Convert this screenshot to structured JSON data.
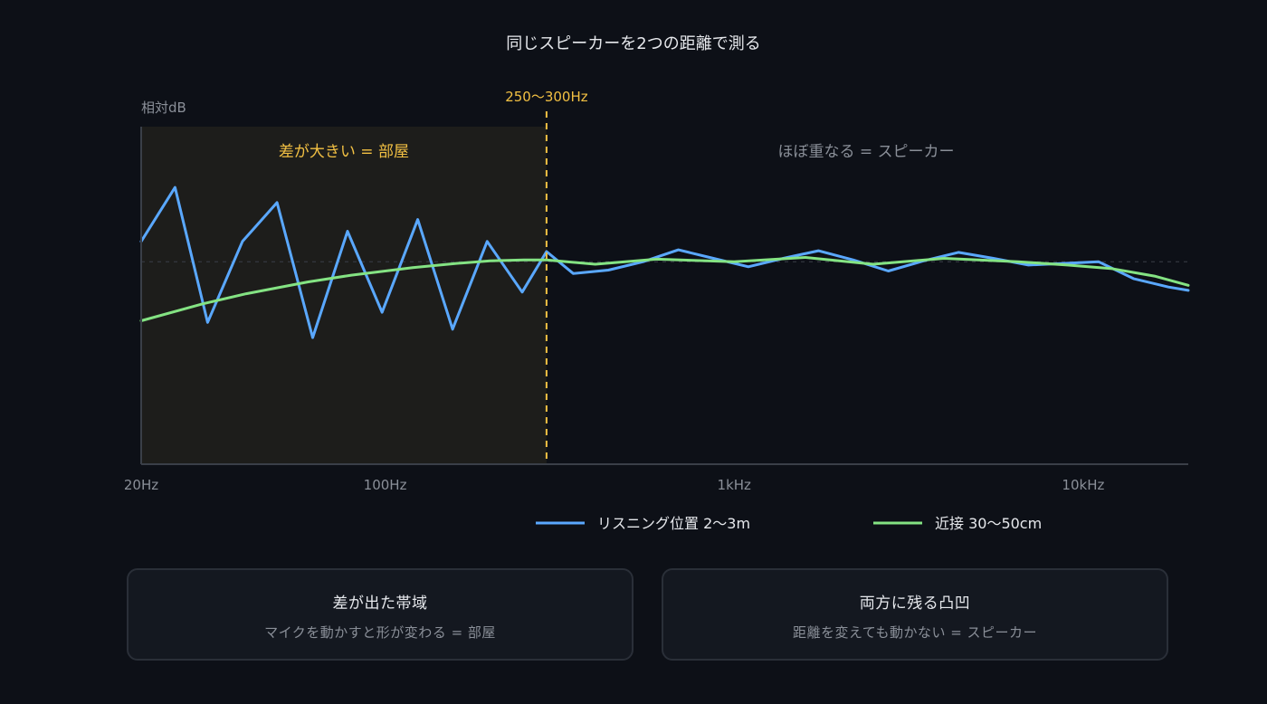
{
  "colors": {
    "background": "#0d1017",
    "room_zone": "#1d1d1b",
    "threshold": "#f2c043",
    "listening": "#5aa8ff",
    "nearfield": "#84e383",
    "axis": "#3a3f48",
    "reference": "#3a3f48",
    "text_primary": "#e6e8ec",
    "text_secondary": "#8a8f98"
  },
  "chart_data": {
    "type": "line",
    "title": "同じスピーカーを2つの距離で測る",
    "ylabel": "相対dB",
    "xlabel": "",
    "xscale": "log",
    "xlim": [
      20,
      20000
    ],
    "ylim": [
      -12,
      8
    ],
    "x_ticks": [
      {
        "value": 20,
        "label": "20Hz"
      },
      {
        "value": 100,
        "label": "100Hz"
      },
      {
        "value": 1000,
        "label": "1kHz"
      },
      {
        "value": 10000,
        "label": "10kHz"
      }
    ],
    "reference_line": 0,
    "threshold": {
      "x": 290,
      "label": "250〜300Hz"
    },
    "annotations": {
      "left": "差が大きい = 部屋",
      "right": "ほぼ重なる = スピーカー"
    },
    "series": [
      {
        "name": "リスニング位置 2〜3m",
        "x": [
          20,
          25,
          31,
          39,
          49,
          62,
          78,
          98,
          124,
          156,
          196,
          247,
          290,
          346,
          436,
          549,
          692,
          872,
          1098,
          1383,
          1743,
          2196,
          2766,
          3485,
          4390,
          5532,
          6969,
          8779,
          11060,
          13934,
          17553,
          20000
        ],
        "y": [
          1.2,
          4.4,
          -3.6,
          1.2,
          3.5,
          -4.5,
          1.8,
          -3.0,
          2.5,
          -4.0,
          1.2,
          -1.8,
          0.6,
          -0.7,
          -0.5,
          0.0,
          0.7,
          0.2,
          -0.3,
          0.2,
          0.65,
          0.1,
          -0.55,
          0.05,
          0.55,
          0.2,
          -0.2,
          -0.1,
          0.0,
          -1.0,
          -1.5,
          -1.7
        ]
      },
      {
        "name": "近接 30〜50cm",
        "x": [
          20,
          30,
          40,
          60,
          80,
          120,
          160,
          200,
          250,
          290,
          400,
          600,
          1000,
          1600,
          2500,
          4000,
          6500,
          9000,
          12000,
          16000,
          20000
        ],
        "y": [
          -3.5,
          -2.5,
          -1.9,
          -1.2,
          -0.8,
          -0.35,
          -0.1,
          0.05,
          0.1,
          0.1,
          -0.15,
          0.15,
          0.0,
          0.25,
          -0.15,
          0.2,
          0.0,
          -0.2,
          -0.4,
          -0.85,
          -1.4
        ]
      }
    ]
  },
  "cards": [
    {
      "title": "差が出た帯域",
      "subtitle": "マイクを動かすと形が変わる = 部屋"
    },
    {
      "title": "両方に残る凸凹",
      "subtitle": "距離を変えても動かない = スピーカー"
    }
  ]
}
